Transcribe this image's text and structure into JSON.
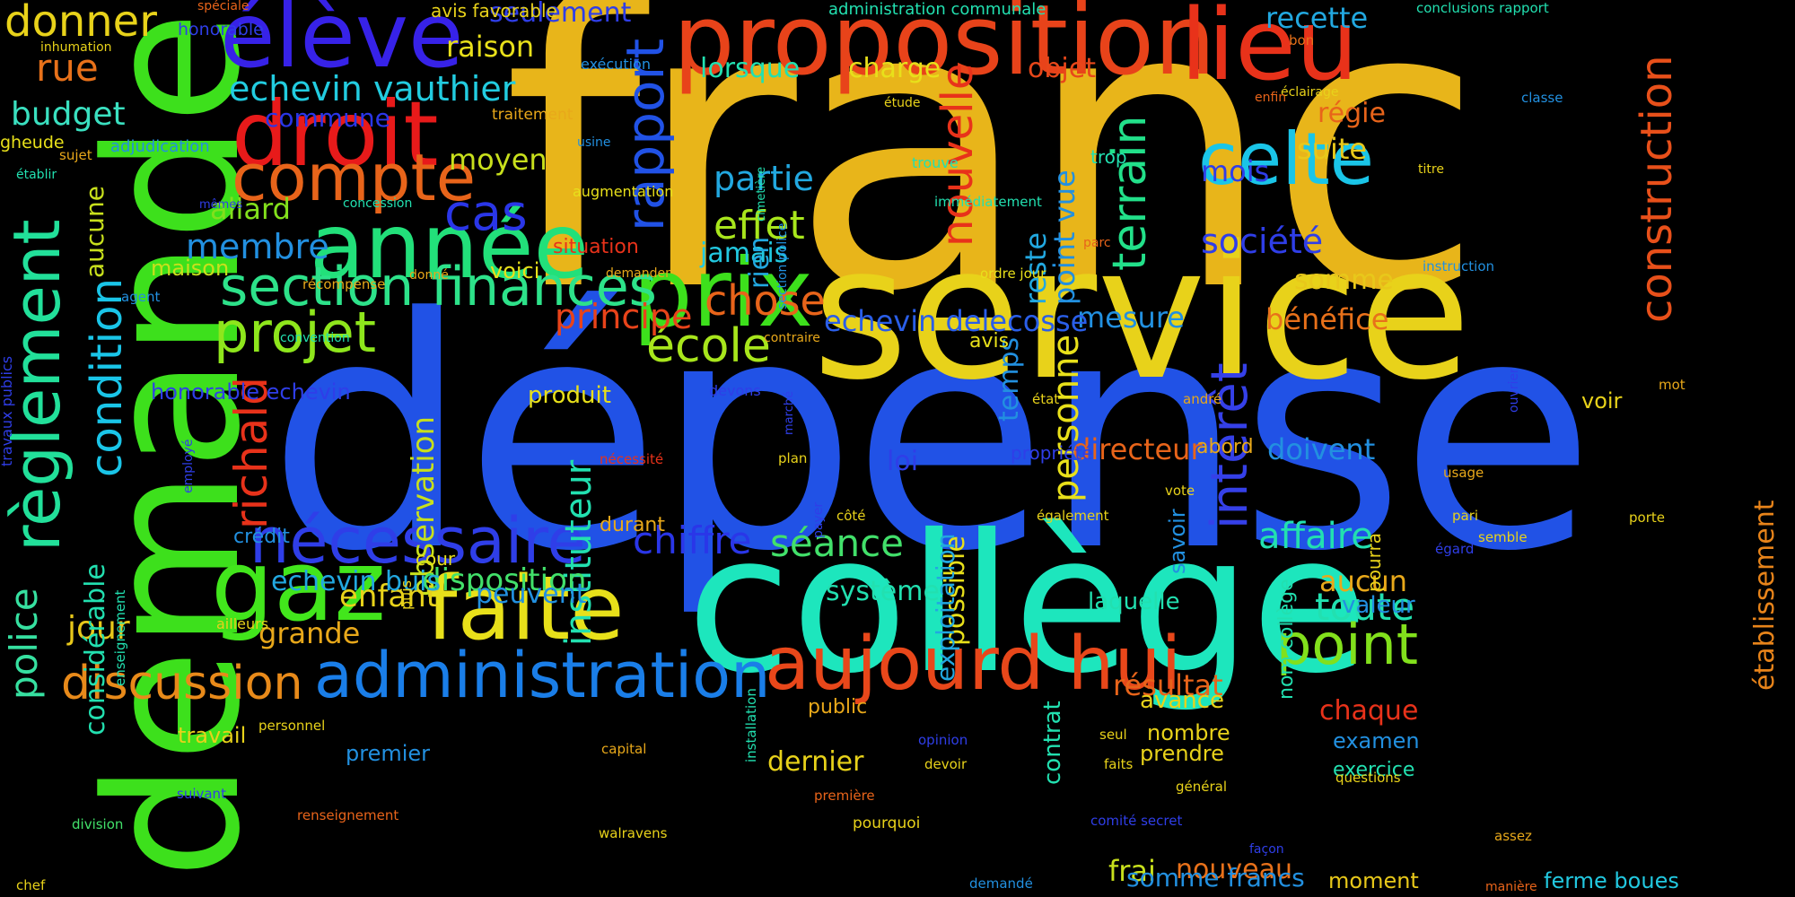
{
  "words": [
    {
      "text": "franc",
      "color": "#e8b51a"
    },
    {
      "text": "dépense",
      "color": "#2152e6"
    },
    {
      "text": "demande",
      "color": "#3de01c"
    },
    {
      "text": "service",
      "color": "#e8d21a"
    },
    {
      "text": "collège",
      "color": "#1de6bd"
    },
    {
      "text": "proposition",
      "color": "#e8431a"
    },
    {
      "text": "élève",
      "color": "#3722e8"
    },
    {
      "text": "lieu",
      "color": "#e8321a"
    },
    {
      "text": "droit",
      "color": "#e81a1a"
    },
    {
      "text": "année",
      "color": "#22e07a"
    },
    {
      "text": "prix",
      "color": "#3de01c"
    },
    {
      "text": "compte",
      "color": "#e8641a"
    },
    {
      "text": "section finances",
      "color": "#2de28a"
    },
    {
      "text": "faite",
      "color": "#e8e01a"
    },
    {
      "text": "administration",
      "color": "#1a7ee8"
    },
    {
      "text": "aujourd hui",
      "color": "#e8471a"
    },
    {
      "text": "nécessaire",
      "color": "#2f3ee8"
    },
    {
      "text": "gaz",
      "color": "#42e61c"
    },
    {
      "text": "règlement",
      "color": "#22e09a"
    },
    {
      "text": "celte",
      "color": "#1ac5e8"
    },
    {
      "text": "construction",
      "color": "#e8501a"
    },
    {
      "text": "rapport",
      "color": "#2152e6"
    },
    {
      "text": "point",
      "color": "#82e01c"
    },
    {
      "text": "police",
      "color": "#36e0a0"
    },
    {
      "text": "richald",
      "color": "#e8321a"
    },
    {
      "text": "discussion",
      "color": "#e88a1a"
    },
    {
      "text": "projet",
      "color": "#8ee61c"
    },
    {
      "text": "école",
      "color": "#a8e61c"
    },
    {
      "text": "condition",
      "color": "#1ac5e8"
    },
    {
      "text": "intérêt",
      "color": "#3540e8"
    },
    {
      "text": "terrain",
      "color": "#22e08a"
    },
    {
      "text": "nouvelle",
      "color": "#e8321a"
    },
    {
      "text": "donner",
      "color": "#e8d21a"
    },
    {
      "text": "rue",
      "color": "#e8711a"
    },
    {
      "text": "budget",
      "color": "#3ae0c0"
    },
    {
      "text": "echevin vauthier",
      "color": "#22cce0"
    },
    {
      "text": "cas",
      "color": "#2a36e8"
    },
    {
      "text": "chose",
      "color": "#e8641a"
    },
    {
      "text": "effet",
      "color": "#a8e61c"
    },
    {
      "text": "partie",
      "color": "#22a8e0"
    },
    {
      "text": "jamais",
      "color": "#22c8e0"
    },
    {
      "text": "principe",
      "color": "#e8431a"
    },
    {
      "text": "instituteur",
      "color": "#22e0b0"
    },
    {
      "text": "observation",
      "color": "#c8e01c"
    },
    {
      "text": "personne",
      "color": "#e8e01a"
    },
    {
      "text": "affaire",
      "color": "#22e0b0"
    },
    {
      "text": "chiffre",
      "color": "#2a36e8"
    },
    {
      "text": "séance",
      "color": "#42e06a"
    },
    {
      "text": "toute",
      "color": "#22e0b0"
    },
    {
      "text": "enfant",
      "color": "#e8d21a"
    },
    {
      "text": "grande",
      "color": "#e8a81a"
    },
    {
      "text": "jour",
      "color": "#e8c81a"
    },
    {
      "text": "disposition",
      "color": "#42e06a"
    },
    {
      "text": "echevin buis",
      "color": "#22a8e0"
    },
    {
      "text": "membre",
      "color": "#2290e0"
    },
    {
      "text": "allard",
      "color": "#82e01c"
    },
    {
      "text": "moyen",
      "color": "#c8e01c"
    },
    {
      "text": "raison",
      "color": "#e8e01a"
    },
    {
      "text": "seulement",
      "color": "#2f3ee8"
    },
    {
      "text": "recette",
      "color": "#22a8e0"
    },
    {
      "text": "objet",
      "color": "#e8471a"
    },
    {
      "text": "charge",
      "color": "#e8e01a"
    },
    {
      "text": "lorsque",
      "color": "#22e0b0"
    },
    {
      "text": "commune",
      "color": "#2a36e8"
    },
    {
      "text": "régie",
      "color": "#e8641a"
    },
    {
      "text": "suite",
      "color": "#e8c81a"
    },
    {
      "text": "mois",
      "color": "#2f3ee8"
    },
    {
      "text": "société",
      "color": "#2f3ee8"
    },
    {
      "text": "somme",
      "color": "#e8c81a"
    },
    {
      "text": "bénéfice",
      "color": "#e8711a"
    },
    {
      "text": "mesure",
      "color": "#2290e0"
    },
    {
      "text": "echevin delecosse",
      "color": "#2a5ee8"
    },
    {
      "text": "reste",
      "color": "#22a8e0"
    },
    {
      "text": "point vue",
      "color": "#2290e0"
    },
    {
      "text": "établissement",
      "color": "#e8841a"
    },
    {
      "text": "doivent",
      "color": "#2290e0"
    },
    {
      "text": "directeur",
      "color": "#e8641a"
    },
    {
      "text": "loi",
      "color": "#2f3ee8"
    },
    {
      "text": "temps",
      "color": "#2290e0"
    },
    {
      "text": "système",
      "color": "#22e0b0"
    },
    {
      "text": "possible",
      "color": "#e8e01a"
    },
    {
      "text": "laquelle",
      "color": "#22e0b0"
    },
    {
      "text": "aucun",
      "color": "#e8a81a"
    },
    {
      "text": "valeur",
      "color": "#2290e0"
    },
    {
      "text": "résultat",
      "color": "#e8641a"
    },
    {
      "text": "chaque",
      "color": "#e8321a"
    },
    {
      "text": "examen",
      "color": "#2290e0"
    },
    {
      "text": "exercice",
      "color": "#22e0b0"
    },
    {
      "text": "nouveau",
      "color": "#e8711a"
    },
    {
      "text": "frai",
      "color": "#c8e01c"
    },
    {
      "text": "somme francs",
      "color": "#2290e0"
    },
    {
      "text": "moment",
      "color": "#e8c81a"
    },
    {
      "text": "ferme boues",
      "color": "#22c8e0"
    },
    {
      "text": "avance",
      "color": "#e8d21a"
    },
    {
      "text": "nombre",
      "color": "#e8d21a"
    },
    {
      "text": "prendre",
      "color": "#e8d21a"
    },
    {
      "text": "dernier",
      "color": "#e8d21a"
    },
    {
      "text": "peuvent",
      "color": "#2290e0"
    },
    {
      "text": "premier",
      "color": "#2290e0"
    },
    {
      "text": "travail",
      "color": "#e8d21a"
    },
    {
      "text": "maison",
      "color": "#c8e01c"
    },
    {
      "text": "honorable echevin",
      "color": "#2f3ee8"
    },
    {
      "text": "considérable",
      "color": "#22e0b0"
    },
    {
      "text": "aucune",
      "color": "#c8e01c"
    },
    {
      "text": "exploitation",
      "color": "#22a8e0"
    },
    {
      "text": "contrat",
      "color": "#22e0b0"
    },
    {
      "text": "nom collège",
      "color": "#22e0b0"
    },
    {
      "text": "pourra",
      "color": "#e8d21a"
    },
    {
      "text": "savoir",
      "color": "#2290e0"
    },
    {
      "text": "produit",
      "color": "#e8e01a"
    },
    {
      "text": "avis",
      "color": "#e8e01a"
    },
    {
      "text": "voir",
      "color": "#e8d21a"
    },
    {
      "text": "abord",
      "color": "#e8a81a"
    },
    {
      "text": "propriété",
      "color": "#2f3ee8"
    },
    {
      "text": "rien",
      "color": "#22a8e0"
    },
    {
      "text": "voici",
      "color": "#e8e01a"
    },
    {
      "text": "situation",
      "color": "#e8321a"
    },
    {
      "text": "public",
      "color": "#e8a81a"
    },
    {
      "text": "durant",
      "color": "#e8a81a"
    },
    {
      "text": "cour",
      "color": "#e8e01a"
    },
    {
      "text": "crédit",
      "color": "#2290e0"
    },
    {
      "text": "avis favorable",
      "color": "#e8d21a"
    },
    {
      "text": "honorable",
      "color": "#2f3ee8"
    },
    {
      "text": "administration communale",
      "color": "#22e0b0"
    },
    {
      "text": "conclusions rapport",
      "color": "#22e0b0"
    },
    {
      "text": "spéciale",
      "color": "#e8641a"
    },
    {
      "text": "inhumation",
      "color": "#e8d21a"
    },
    {
      "text": "exécution",
      "color": "#2290e0"
    },
    {
      "text": "bon",
      "color": "#e8711a"
    },
    {
      "text": "éclairage",
      "color": "#e8d21a"
    },
    {
      "text": "enfin",
      "color": "#e8641a"
    },
    {
      "text": "classe",
      "color": "#2290e0"
    },
    {
      "text": "traitement",
      "color": "#e8a81a"
    },
    {
      "text": "étude",
      "color": "#e8d21a"
    },
    {
      "text": "usine",
      "color": "#2290e0"
    },
    {
      "text": "gheude",
      "color": "#e8e01a"
    },
    {
      "text": "sujet",
      "color": "#e8a81a"
    },
    {
      "text": "adjudication",
      "color": "#2290e0"
    },
    {
      "text": "établir",
      "color": "#22e0b0"
    },
    {
      "text": "augmentation",
      "color": "#e8e01a"
    },
    {
      "text": "mêmes",
      "color": "#2f3ee8"
    },
    {
      "text": "concession",
      "color": "#22e0b0"
    },
    {
      "text": "cimetière",
      "color": "#22e0b0"
    },
    {
      "text": "section police",
      "color": "#2290e0"
    },
    {
      "text": "trouve",
      "color": "#22e0b0"
    },
    {
      "text": "trop",
      "color": "#22e0b0"
    },
    {
      "text": "immédiatement",
      "color": "#22e0b0"
    },
    {
      "text": "titre",
      "color": "#e8d21a"
    },
    {
      "text": "parc",
      "color": "#e8641a"
    },
    {
      "text": "instruction",
      "color": "#2290e0"
    },
    {
      "text": "ordre jour",
      "color": "#e8e01a"
    },
    {
      "text": "donné",
      "color": "#e8a81a"
    },
    {
      "text": "demander",
      "color": "#e8a81a"
    },
    {
      "text": "récompense",
      "color": "#e8a81a"
    },
    {
      "text": "agent",
      "color": "#2290e0"
    },
    {
      "text": "convention",
      "color": "#22e0b0"
    },
    {
      "text": "contraire",
      "color": "#e8a81a"
    },
    {
      "text": "travaux publics",
      "color": "#2f3ee8"
    },
    {
      "text": "devons",
      "color": "#2f3ee8"
    },
    {
      "text": "marché",
      "color": "#2f3ee8"
    },
    {
      "text": "ouvrier",
      "color": "#2f3ee8"
    },
    {
      "text": "mot",
      "color": "#e8a81a"
    },
    {
      "text": "état",
      "color": "#e8d21a"
    },
    {
      "text": "andré",
      "color": "#e8a81a"
    },
    {
      "text": "employé",
      "color": "#2f3ee8"
    },
    {
      "text": "nécessité",
      "color": "#e8321a"
    },
    {
      "text": "plan",
      "color": "#e8d21a"
    },
    {
      "text": "usage",
      "color": "#e8a81a"
    },
    {
      "text": "vote",
      "color": "#e8d21a"
    },
    {
      "text": "également",
      "color": "#e8d21a"
    },
    {
      "text": "pari",
      "color": "#e8d21a"
    },
    {
      "text": "côté",
      "color": "#e8d21a"
    },
    {
      "text": "porte",
      "color": "#e8d21a"
    },
    {
      "text": "semble",
      "color": "#e8d21a"
    },
    {
      "text": "payer",
      "color": "#2f3ee8"
    },
    {
      "text": "égard",
      "color": "#2f3ee8"
    },
    {
      "text": "puis",
      "color": "#e8d21a"
    },
    {
      "text": "ailleurs",
      "color": "#e8d21a"
    },
    {
      "text": "enseignement",
      "color": "#22e0b0"
    },
    {
      "text": "installation",
      "color": "#22e0b0"
    },
    {
      "text": "personnel",
      "color": "#e8d21a"
    },
    {
      "text": "capital",
      "color": "#e8a81a"
    },
    {
      "text": "opinion",
      "color": "#2f3ee8"
    },
    {
      "text": "seul",
      "color": "#e8d21a"
    },
    {
      "text": "devoir",
      "color": "#e8d21a"
    },
    {
      "text": "faits",
      "color": "#e8d21a"
    },
    {
      "text": "première",
      "color": "#e8641a"
    },
    {
      "text": "général",
      "color": "#e8d21a"
    },
    {
      "text": "questions",
      "color": "#e8d21a"
    },
    {
      "text": "suivant",
      "color": "#2f3ee8"
    },
    {
      "text": "division",
      "color": "#42e06a"
    },
    {
      "text": "renseignement",
      "color": "#e8641a"
    },
    {
      "text": "walravens",
      "color": "#e8d21a"
    },
    {
      "text": "pourquoi",
      "color": "#e8d21a"
    },
    {
      "text": "comité secret",
      "color": "#2f3ee8"
    },
    {
      "text": "façon",
      "color": "#2f3ee8"
    },
    {
      "text": "assez",
      "color": "#e8a81a"
    },
    {
      "text": "chef",
      "color": "#e8d21a"
    },
    {
      "text": "demandé",
      "color": "#2290e0"
    },
    {
      "text": "manière",
      "color": "#e8641a"
    }
  ]
}
